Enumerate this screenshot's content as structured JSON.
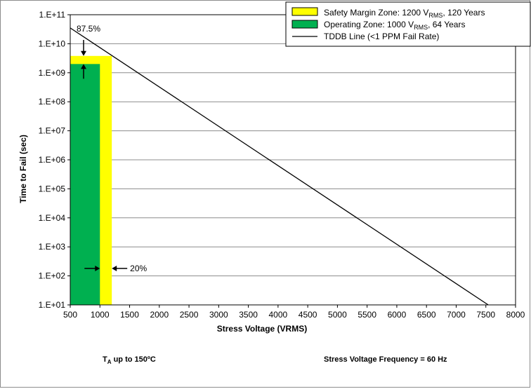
{
  "chart_data": {
    "type": "line",
    "y_scale": "log",
    "grid": true,
    "xlim": [
      500,
      8000
    ],
    "ylim": [
      10,
      100000000000
    ],
    "x_ticks": [
      500,
      1000,
      1500,
      2000,
      2500,
      3000,
      3500,
      4000,
      4500,
      5000,
      5500,
      6000,
      6500,
      7000,
      7500,
      8000
    ],
    "x_tick_labels": [
      "500",
      "1000",
      "1500",
      "2000",
      "2500",
      "3000",
      "3500",
      "4000",
      "4500",
      "5000",
      "5500",
      "6000",
      "6500",
      "7000",
      "7500",
      "8000"
    ],
    "y_ticks": [
      10,
      100,
      1000,
      10000,
      100000,
      1000000,
      10000000,
      100000000,
      1000000000,
      10000000000,
      100000000000
    ],
    "y_tick_labels": [
      "1.E+01",
      "1.E+02",
      "1.E+03",
      "1.E+04",
      "1.E+05",
      "1.E+06",
      "1.E+07",
      "1.E+08",
      "1.E+09",
      "1.E+10",
      "1.E+11"
    ],
    "xlabel": "Stress Voltage (VRMS)",
    "ylabel": "Time to Fail (sec)",
    "legend_position": "top-right",
    "series": [
      {
        "name": "TDDB Line (<1 PPM Fail Rate)",
        "color": "#000000",
        "x": [
          500,
          7540
        ],
        "y": [
          35000000000,
          10
        ]
      }
    ],
    "zones": [
      {
        "name_prefix": "Safety Margin Zone: 1200 V",
        "name_sub": "RMS",
        "name_suffix": ", 120 Years",
        "color": "#ffff00",
        "x": [
          500,
          1200
        ],
        "y": [
          10,
          3800000000
        ]
      },
      {
        "name_prefix": "Operating Zone: 1000 V",
        "name_sub": "RMS",
        "name_suffix": ", 64 Years",
        "color": "#00b050",
        "x": [
          500,
          1000
        ],
        "y": [
          10,
          2000000000
        ]
      }
    ],
    "annotations": {
      "margin_time": "87.5%",
      "margin_voltage": "20%"
    }
  },
  "footer": {
    "temp_prefix": "T",
    "temp_sub": "A",
    "temp_suffix": "  up to 150ºC",
    "frequency": "Stress Voltage Frequency = 60 Hz"
  }
}
